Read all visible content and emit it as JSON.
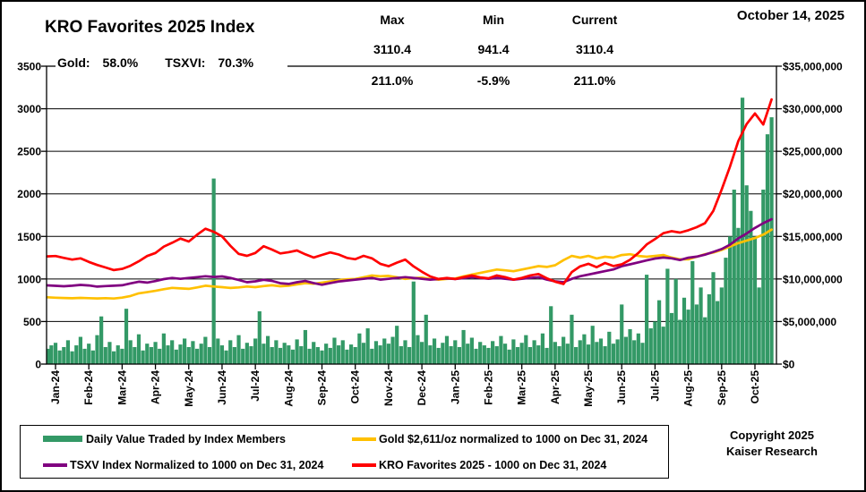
{
  "header": {
    "title": "KRO Favorites 2025 Index",
    "gold_label": "Gold:",
    "gold_value": "58.0%",
    "tsxvi_label": "TSXVI:",
    "tsxvi_value": "70.3%",
    "date": "October 14, 2025"
  },
  "stats": {
    "columns": [
      {
        "label": "Max",
        "index_value": "3110.4",
        "percent_value": "211.0%"
      },
      {
        "label": "Min",
        "index_value": "941.4",
        "percent_value": "-5.9%"
      },
      {
        "label": "Current",
        "index_value": "3110.4",
        "percent_value": "211.0%"
      }
    ]
  },
  "legend": {
    "items": [
      {
        "label": "Daily Value Traded by Index Members",
        "color": "#339966",
        "swatch": "rect"
      },
      {
        "label": "Gold $2,611/oz normalized to 1000 on Dec 31, 2024",
        "color": "#FFC000",
        "swatch": "line"
      },
      {
        "label": "TSXV Index Normalized to 1000 on Dec 31, 2024",
        "color": "#800080",
        "swatch": "line"
      },
      {
        "label": "KRO Favorites 2025 - 1000 on Dec 31, 2024",
        "color": "#FF0000",
        "swatch": "line"
      }
    ]
  },
  "footer": {
    "copyright_line1": "Copyright 2025",
    "copyright_line2": "Kaiser Research"
  },
  "chart_data": {
    "type": "mixed",
    "title": "KRO Favorites 2025 Index",
    "grid": true,
    "x_axis": {
      "labels": [
        "Jan-24",
        "Feb-24",
        "Mar-24",
        "Apr-24",
        "May-24",
        "Jun-24",
        "Jul-24",
        "Aug-24",
        "Sep-24",
        "Oct-24",
        "Nov-24",
        "Dec-24",
        "Jan-25",
        "Feb-25",
        "Mar-25",
        "Apr-25",
        "May-25",
        "Jun-25",
        "Jul-25",
        "Aug-25",
        "Sep-25",
        "Oct-25"
      ],
      "note": "daily data from Jan 2024 to Oct 14 2025; t measured in months from Jan-24 tick"
    },
    "left_axis": {
      "min": 0,
      "max": 3500,
      "tick_interval": 500,
      "tick_values": [
        0,
        500,
        1000,
        1500,
        2000,
        2500,
        3000,
        3500
      ],
      "tick_labels": [
        "0",
        "500",
        "1000",
        "1500",
        "2000",
        "2500",
        "3000",
        "3500"
      ]
    },
    "right_axis": {
      "min": 0,
      "max": 35000000,
      "tick_interval": 5000000,
      "tick_values_millions": [
        0,
        5,
        10,
        15,
        20,
        25,
        30,
        35
      ],
      "tick_labels": [
        "$0",
        "$5,000,000",
        "$10,000,000",
        "$15,000,000",
        "$20,000,000",
        "$25,000,000",
        "$30,000,000",
        "$35,000,000"
      ]
    },
    "series": [
      {
        "name": "Daily Value Traded by Index Members",
        "type": "bar",
        "axis": "right",
        "unit": "$ millions",
        "color": "#339966",
        "t0": -0.25,
        "dt": 0.125,
        "values": [
          1.8,
          2.2,
          2.5,
          1.6,
          2.0,
          2.8,
          1.5,
          2.2,
          3.2,
          1.8,
          2.4,
          1.6,
          3.4,
          5.6,
          2.0,
          2.6,
          1.5,
          2.2,
          1.8,
          6.5,
          2.8,
          2.0,
          3.5,
          1.6,
          2.4,
          2.0,
          2.6,
          1.8,
          3.6,
          2.2,
          2.8,
          1.7,
          2.3,
          3.0,
          2.0,
          2.7,
          1.8,
          2.4,
          3.2,
          2.0,
          21.8,
          3.0,
          2.2,
          1.6,
          2.8,
          2.0,
          3.4,
          1.8,
          2.5,
          2.1,
          3.0,
          6.2,
          2.4,
          3.3,
          2.0,
          2.8,
          1.9,
          2.5,
          2.2,
          1.7,
          2.9,
          2.1,
          4.0,
          1.8,
          2.6,
          2.0,
          1.6,
          2.4,
          1.9,
          3.1,
          2.2,
          2.8,
          1.7,
          2.3,
          2.0,
          3.6,
          2.5,
          4.2,
          1.8,
          2.7,
          2.2,
          3.0,
          2.4,
          3.2,
          4.5,
          2.1,
          2.8,
          2.0,
          9.7,
          3.4,
          2.6,
          5.8,
          2.2,
          3.0,
          1.9,
          2.5,
          3.3,
          2.1,
          2.8,
          2.0,
          4.0,
          2.4,
          3.1,
          1.8,
          2.6,
          2.2,
          1.9,
          2.7,
          2.1,
          3.3,
          2.4,
          1.7,
          2.9,
          2.0,
          2.5,
          3.4,
          2.0,
          2.8,
          2.2,
          3.6,
          1.9,
          6.8,
          2.6,
          2.1,
          3.2,
          2.4,
          5.8,
          2.0,
          2.8,
          3.5,
          2.3,
          4.5,
          2.6,
          3.0,
          2.1,
          3.8,
          2.4,
          2.9,
          7.0,
          3.2,
          4.1,
          2.8,
          3.6,
          2.5,
          10.5,
          4.2,
          5.0,
          7.5,
          4.4,
          11.2,
          6.0,
          10.0,
          5.2,
          7.8,
          6.4,
          12.1,
          7.0,
          9.0,
          5.5,
          8.2,
          10.8,
          7.4,
          9.0,
          12.5,
          15.0,
          20.5,
          16.0,
          31.3,
          21.0,
          18.0,
          15.0,
          9.0,
          20.5,
          27.0,
          29.0
        ]
      },
      {
        "name": "Gold $2,611/oz normalized to 1000 on Dec 31, 2024",
        "type": "line",
        "axis": "left",
        "color": "#FFC000",
        "t0": -0.25,
        "dt": 0.25,
        "values": [
          785,
          780,
          777,
          774,
          778,
          775,
          771,
          775,
          770,
          781,
          800,
          831,
          845,
          861,
          880,
          896,
          889,
          884,
          901,
          921,
          911,
          904,
          894,
          901,
          911,
          904,
          916,
          926,
          914,
          921,
          936,
          951,
          944,
          956,
          971,
          986,
          996,
          1001,
          1021,
          1041,
          1031,
          1036,
          1021,
          1001,
          1011,
          1016,
          1001,
          991,
          1001,
          1006,
          1031,
          1051,
          1071,
          1091,
          1111,
          1101,
          1091,
          1111,
          1131,
          1151,
          1141,
          1161,
          1221,
          1271,
          1251,
          1271,
          1241,
          1261,
          1251,
          1281,
          1291,
          1271,
          1261,
          1271,
          1281,
          1251,
          1231,
          1231,
          1261,
          1291,
          1311,
          1341,
          1381,
          1421,
          1451,
          1481,
          1521,
          1580
        ]
      },
      {
        "name": "TSXV Index Normalized to 1000 on Dec 31, 2024",
        "type": "line",
        "axis": "left",
        "color": "#800080",
        "t0": -0.25,
        "dt": 0.25,
        "values": [
          925,
          920,
          914,
          921,
          930,
          924,
          910,
          916,
          921,
          926,
          948,
          968,
          958,
          975,
          998,
          1012,
          1002,
          1012,
          1022,
          1032,
          1024,
          1030,
          1012,
          988,
          962,
          972,
          990,
          978,
          950,
          942,
          962,
          976,
          952,
          932,
          952,
          970,
          982,
          992,
          1002,
          1012,
          992,
          1002,
          1012,
          1022,
          1012,
          1002,
          992,
          1000,
          1006,
          1000,
          1010,
          1022,
          1012,
          1002,
          1012,
          1002,
          992,
          1002,
          1012,
          1022,
          992,
          972,
          962,
          1002,
          1032,
          1052,
          1072,
          1092,
          1112,
          1150,
          1172,
          1195,
          1218,
          1240,
          1252,
          1242,
          1222,
          1250,
          1262,
          1285,
          1318,
          1352,
          1402,
          1478,
          1535,
          1600,
          1655,
          1703
        ]
      },
      {
        "name": "KRO Favorites 2025 - 1000 on Dec 31, 2024",
        "type": "line",
        "axis": "left",
        "color": "#FF0000",
        "t0": -0.25,
        "dt": 0.25,
        "values": [
          1265,
          1270,
          1248,
          1228,
          1242,
          1200,
          1165,
          1135,
          1105,
          1118,
          1155,
          1208,
          1270,
          1305,
          1380,
          1425,
          1475,
          1440,
          1520,
          1590,
          1555,
          1500,
          1390,
          1295,
          1272,
          1305,
          1385,
          1345,
          1300,
          1315,
          1335,
          1290,
          1252,
          1282,
          1312,
          1288,
          1248,
          1232,
          1272,
          1242,
          1178,
          1150,
          1192,
          1228,
          1148,
          1085,
          1030,
          1000,
          1012,
          1000,
          1022,
          1042,
          1018,
          1008,
          1042,
          1022,
          992,
          1012,
          1042,
          1058,
          1008,
          968,
          941,
          1082,
          1148,
          1178,
          1138,
          1188,
          1152,
          1172,
          1225,
          1305,
          1405,
          1468,
          1538,
          1562,
          1545,
          1572,
          1608,
          1655,
          1800,
          2050,
          2320,
          2620,
          2820,
          2945,
          2815,
          3110
        ]
      }
    ],
    "summary": {
      "max_index": 3110.4,
      "min_index": 941.4,
      "current_index": 3110.4,
      "max_pct": "211.0%",
      "min_pct": "-5.9%",
      "current_pct": "211.0%",
      "gold_gain": "58.0%",
      "tsxvi_gain": "70.3%"
    }
  }
}
